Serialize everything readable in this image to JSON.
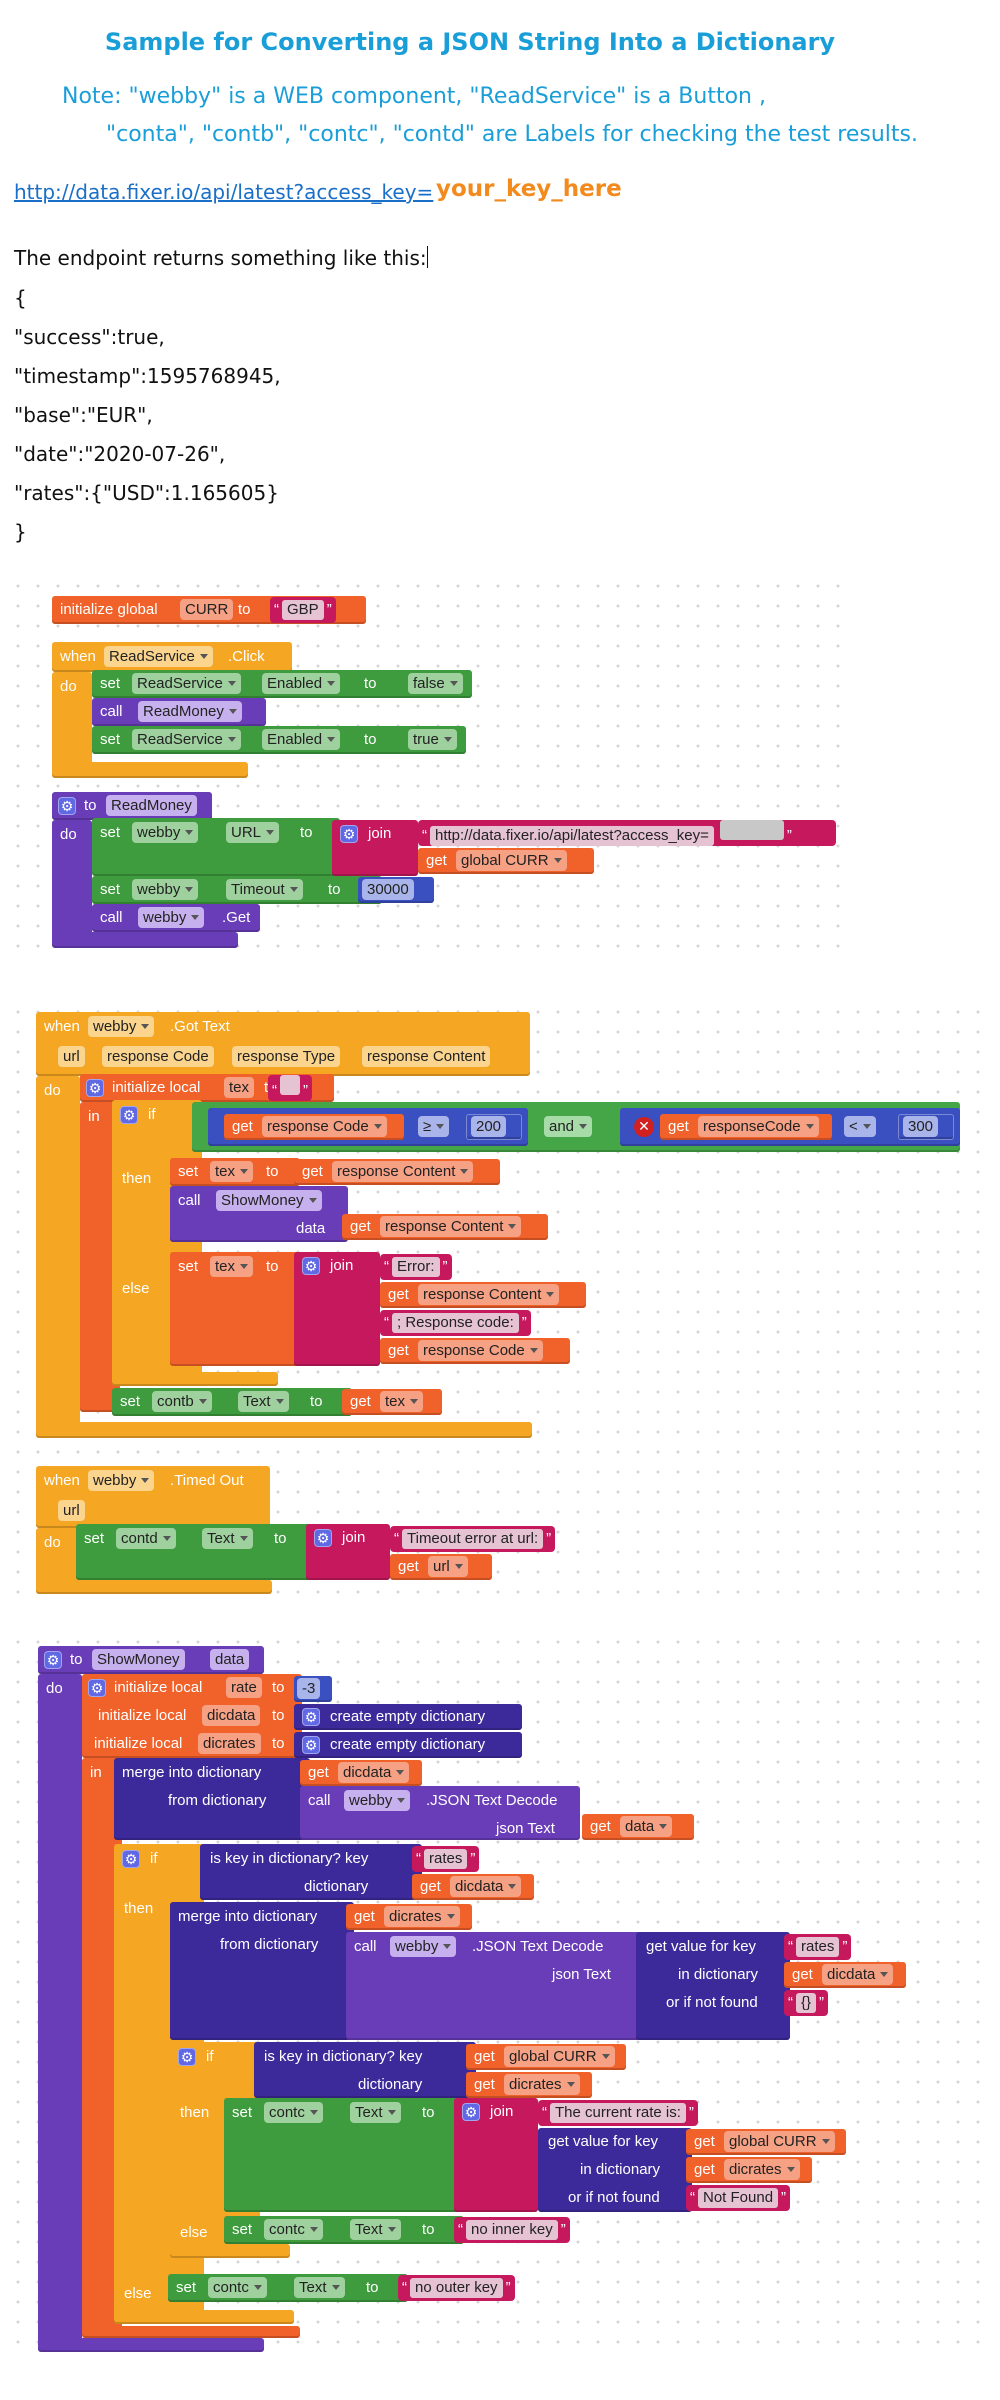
{
  "doc": {
    "title": "Sample for Converting a JSON String Into a Dictionary",
    "note_line1": "Note: \"webby\" is a WEB component, \"ReadService\" is a Button ,",
    "note_line2": "\"conta\", \"contb\", \"contc\", \"contd\" are Labels for checking the test results.",
    "api_url": "http://data.fixer.io/api/latest?access_key=",
    "api_key_placeholder": "your_key_here",
    "endpoint_intro": "The endpoint returns something like this:",
    "json_lines": [
      "{",
      "\"success\":true,",
      "\"timestamp\":1595768945,",
      "\"base\":\"EUR\",",
      "\"date\":\"2020-07-26\",",
      "\"rates\":{\"USD\":1.165605}",
      "}"
    ]
  },
  "blocks": {
    "global_init": {
      "label": "initialize global",
      "name": "CURR",
      "to": "to",
      "value": "GBP"
    },
    "readservice_click": {
      "when": "when",
      "component": "ReadService",
      "event": ".Click",
      "do": "do",
      "set": "set",
      "call": "call",
      "enabled": "Enabled",
      "to": "to",
      "false_val": "false",
      "proc": "ReadMoney",
      "true_val": "true"
    },
    "readmoney_proc": {
      "to": "to",
      "name": "ReadMoney",
      "do": "do",
      "set": "set",
      "component": "webby",
      "url_prop": "URL",
      "join": "join",
      "url_string": "http://data.fixer.io/api/latest?access_key=",
      "get": "get",
      "global_curr": "global CURR",
      "timeout_prop": "Timeout",
      "timeout_value": "30000",
      "call": "call",
      "get_method": ".Get"
    },
    "got_text": {
      "when": "when",
      "component": "webby",
      "event": ".Got Text",
      "params": [
        "url",
        "response Code",
        "response Type",
        "response Content"
      ],
      "do": "do",
      "init_local": "initialize local",
      "local_name": "tex",
      "to": "to",
      "in": "in",
      "if": "if",
      "then": "then",
      "else": "else",
      "get": "get",
      "set": "set",
      "call": "call",
      "response_code": "response Code",
      "gte": "≥",
      "low": "200",
      "and": "and",
      "response_code2": "responseCode",
      "lt": "<",
      "high": "300",
      "response_content": "response Content",
      "show_money": "ShowMoney",
      "data": "data",
      "join": "join",
      "error_str": "Error: ",
      "response_code_str": "; Response code: ",
      "contb": "contb",
      "text_prop": "Text"
    },
    "timed_out": {
      "when": "when",
      "component": "webby",
      "event": ".Timed Out",
      "param": "url",
      "do": "do",
      "set": "set",
      "contd": "contd",
      "text_prop": "Text",
      "to": "to",
      "join": "join",
      "timeout_str": "Timeout error at url: ",
      "get": "get",
      "url": "url"
    },
    "show_money": {
      "to": "to",
      "name": "ShowMoney",
      "param": "data",
      "do": "do",
      "init_local": "initialize local",
      "rate": "rate",
      "rate_value": "-3",
      "dicdata": "dicdata",
      "dicrates": "dicrates",
      "create_dict": "create empty dictionary",
      "in": "in",
      "merge": "merge into dictionary",
      "from_dict": "from dictionary",
      "call": "call",
      "component": "webby",
      "json_decode": ".JSON Text Decode",
      "json_text": "json Text",
      "get": "get",
      "data": "data",
      "if": "if",
      "then": "then",
      "else": "else",
      "is_key": "is key in dictionary? key",
      "dictionary": "dictionary",
      "rates_str": "rates",
      "get_value": "get value for key",
      "in_dictionary": "in dictionary",
      "or_if_not_found": "or if not found",
      "empty_obj": "{}",
      "global_curr": "global CURR",
      "set": "set",
      "contc": "contc",
      "text_prop": "Text",
      "join": "join",
      "current_rate_str": "The current rate is: ",
      "not_found_str": "Not Found",
      "no_inner_key": "no inner key",
      "no_outer_key": "no outer key"
    }
  },
  "colors": {
    "title_blue": "#1a9ed8",
    "event_orange": "#f5a623",
    "proc_purple": "#6a3db8",
    "set_green": "#3e9b3e",
    "text_magenta": "#c6195d",
    "var_orange": "#f1612a",
    "dict_indigo": "#3d2a9a",
    "math_blue": "#3a4fc0",
    "logic_green": "#45a647"
  }
}
